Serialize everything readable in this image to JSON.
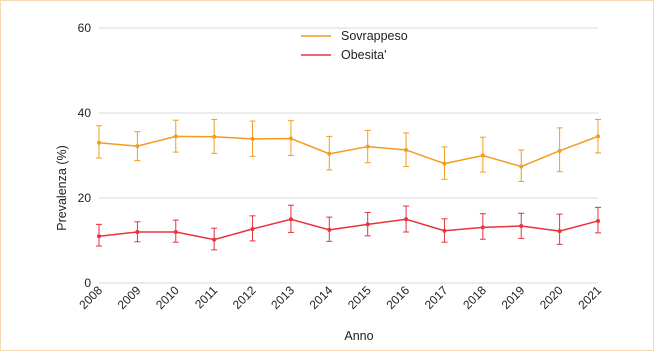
{
  "colors": {
    "series_sovrappeso": "#f39c20",
    "series_obesita": "#e8323c",
    "grid": "#d9d9d9",
    "frame": "#f7d9b5"
  },
  "chart_data": {
    "type": "line",
    "title": "",
    "xlabel": "Anno",
    "ylabel": "Prevalenza (%)",
    "ylim": [
      0,
      60
    ],
    "yticks": [
      0,
      20,
      40,
      60
    ],
    "grid": "horizontal",
    "legend_position": "top-center",
    "x": [
      "2008",
      "2009",
      "2010",
      "2011",
      "2012",
      "2013",
      "2014",
      "2015",
      "2016",
      "2017",
      "2018",
      "2019",
      "2020",
      "2021"
    ],
    "series": [
      {
        "name": "Sovrappeso",
        "color": "#f39c20",
        "values": [
          33.0,
          32.2,
          34.5,
          34.4,
          33.9,
          34.0,
          30.4,
          32.1,
          31.3,
          28.1,
          30.0,
          27.4,
          31.1,
          34.5
        ],
        "lower": [
          29.4,
          28.8,
          30.8,
          30.5,
          29.8,
          30.0,
          26.6,
          28.3,
          27.4,
          24.4,
          26.1,
          23.9,
          26.2,
          30.6
        ],
        "upper": [
          37.0,
          35.6,
          38.3,
          38.5,
          38.1,
          38.2,
          34.5,
          35.9,
          35.3,
          32.0,
          34.3,
          31.3,
          36.5,
          38.5
        ]
      },
      {
        "name": "Obesita'",
        "color": "#e8323c",
        "values": [
          11.0,
          12.0,
          12.0,
          10.2,
          12.7,
          15.0,
          12.5,
          13.8,
          15.0,
          12.3,
          13.1,
          13.4,
          12.2,
          14.6
        ],
        "lower": [
          8.7,
          9.7,
          9.6,
          7.8,
          9.9,
          11.9,
          9.8,
          11.1,
          12.0,
          9.6,
          10.3,
          10.5,
          9.1,
          11.8
        ],
        "upper": [
          13.8,
          14.4,
          14.8,
          12.9,
          15.8,
          18.3,
          15.5,
          16.6,
          18.1,
          15.1,
          16.3,
          16.4,
          16.2,
          17.8
        ]
      }
    ]
  }
}
